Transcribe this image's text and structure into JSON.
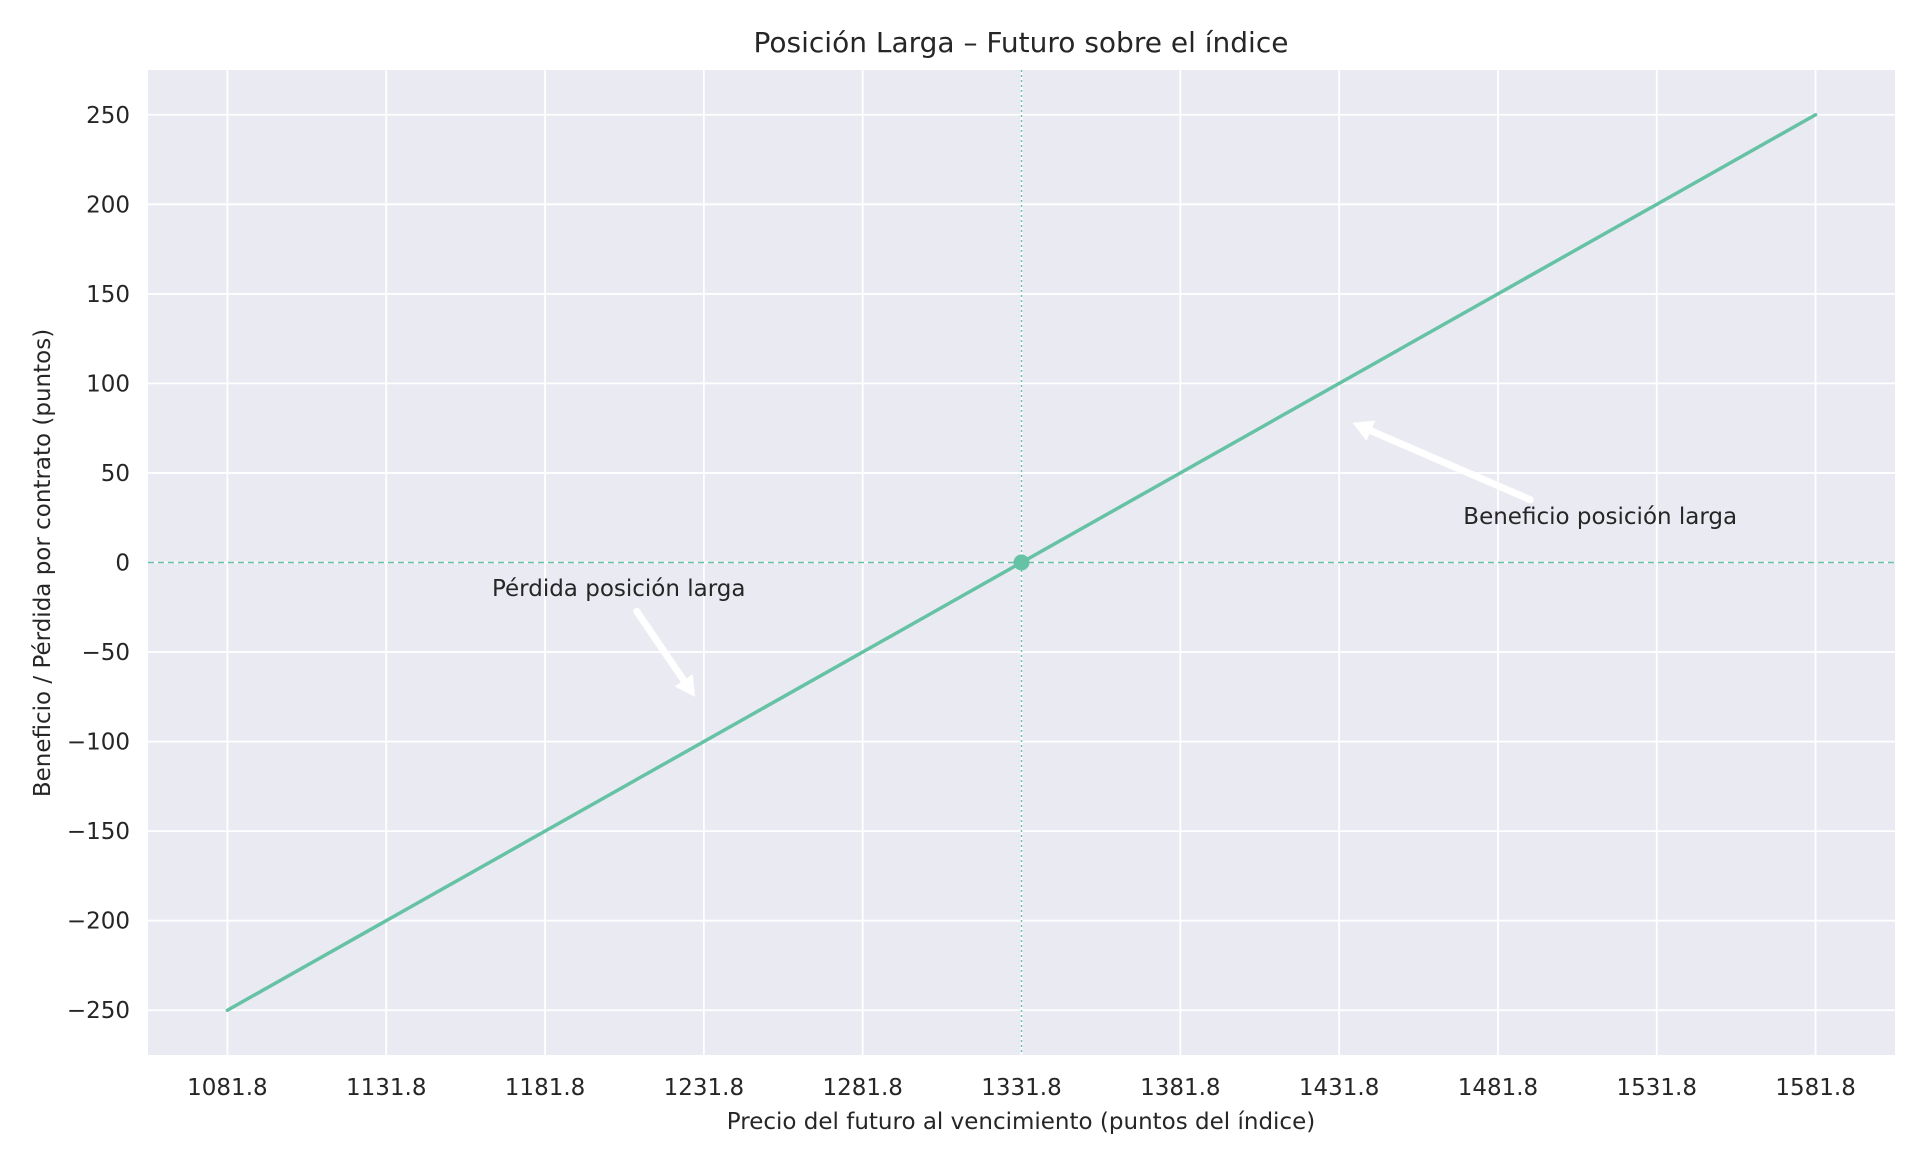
{
  "chart_data": {
    "type": "line",
    "title": "Posición Larga – Futuro sobre el índice",
    "xlabel": "Precio del futuro al vencimiento (puntos del índice)",
    "ylabel": "Beneficio / Pérdida por contrato (puntos)",
    "xlim": [
      1056.8,
      1606.8
    ],
    "ylim": [
      -275,
      275
    ],
    "xticks": [
      1081.8,
      1131.8,
      1181.8,
      1231.8,
      1281.8,
      1331.8,
      1381.8,
      1431.8,
      1481.8,
      1531.8,
      1581.8
    ],
    "xtick_labels": [
      "1081.8",
      "1131.8",
      "1181.8",
      "1231.8",
      "1281.8",
      "1331.8",
      "1381.8",
      "1431.8",
      "1481.8",
      "1531.8",
      "1581.8"
    ],
    "yticks": [
      250,
      200,
      150,
      100,
      50,
      0,
      -50,
      -100,
      -150,
      -200,
      -250
    ],
    "ytick_labels": [
      "250",
      "200",
      "150",
      "100",
      "50",
      "0",
      "−50",
      "−100",
      "−150",
      "−200",
      "−250"
    ],
    "grid": true,
    "series": [
      {
        "x": [
          1081.8,
          1581.8
        ],
        "y": [
          -250,
          250
        ],
        "color": "#66c2a5"
      }
    ],
    "breakeven": {
      "x": 1331.8,
      "y": 0
    },
    "reference_lines": {
      "horizontal_y": 0,
      "vertical_x": 1331.8
    },
    "annotations": [
      {
        "text": "Beneficio posición larga",
        "text_x": 1514,
        "text_y": 25,
        "arrow_x": 1436,
        "arrow_y": 78
      },
      {
        "text": "Pérdida posición larga",
        "text_x": 1205,
        "text_y": -15,
        "arrow_x": 1229,
        "arrow_y": -75
      }
    ],
    "colors": {
      "background": "#eaeaf2",
      "grid": "#ffffff",
      "line": "#66c2a5",
      "arrow": "#ffffff"
    }
  }
}
